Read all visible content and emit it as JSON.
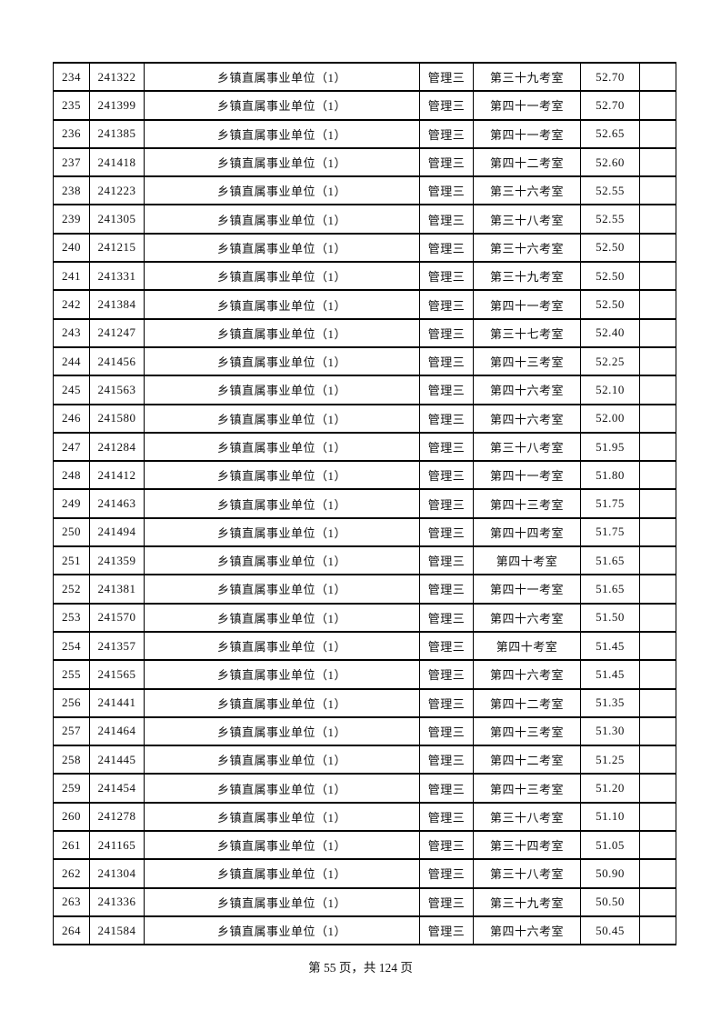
{
  "page": {
    "footer": "第 55 页，共 124 页"
  },
  "table": {
    "columns": [
      {
        "key": "no",
        "name": "rank-number"
      },
      {
        "key": "id",
        "name": "candidate-id"
      },
      {
        "key": "unit",
        "name": "position-unit"
      },
      {
        "key": "category",
        "name": "exam-category"
      },
      {
        "key": "room",
        "name": "exam-room"
      },
      {
        "key": "score",
        "name": "score"
      },
      {
        "key": "extra",
        "name": "remark"
      }
    ],
    "rows": [
      {
        "no": "234",
        "id": "241322",
        "unit": "乡镇直属事业单位（1）",
        "category": "管理三",
        "room": "第三十九考室",
        "score": "52.70",
        "extra": ""
      },
      {
        "no": "235",
        "id": "241399",
        "unit": "乡镇直属事业单位（1）",
        "category": "管理三",
        "room": "第四十一考室",
        "score": "52.70",
        "extra": ""
      },
      {
        "no": "236",
        "id": "241385",
        "unit": "乡镇直属事业单位（1）",
        "category": "管理三",
        "room": "第四十一考室",
        "score": "52.65",
        "extra": ""
      },
      {
        "no": "237",
        "id": "241418",
        "unit": "乡镇直属事业单位（1）",
        "category": "管理三",
        "room": "第四十二考室",
        "score": "52.60",
        "extra": ""
      },
      {
        "no": "238",
        "id": "241223",
        "unit": "乡镇直属事业单位（1）",
        "category": "管理三",
        "room": "第三十六考室",
        "score": "52.55",
        "extra": ""
      },
      {
        "no": "239",
        "id": "241305",
        "unit": "乡镇直属事业单位（1）",
        "category": "管理三",
        "room": "第三十八考室",
        "score": "52.55",
        "extra": ""
      },
      {
        "no": "240",
        "id": "241215",
        "unit": "乡镇直属事业单位（1）",
        "category": "管理三",
        "room": "第三十六考室",
        "score": "52.50",
        "extra": ""
      },
      {
        "no": "241",
        "id": "241331",
        "unit": "乡镇直属事业单位（1）",
        "category": "管理三",
        "room": "第三十九考室",
        "score": "52.50",
        "extra": ""
      },
      {
        "no": "242",
        "id": "241384",
        "unit": "乡镇直属事业单位（1）",
        "category": "管理三",
        "room": "第四十一考室",
        "score": "52.50",
        "extra": ""
      },
      {
        "no": "243",
        "id": "241247",
        "unit": "乡镇直属事业单位（1）",
        "category": "管理三",
        "room": "第三十七考室",
        "score": "52.40",
        "extra": ""
      },
      {
        "no": "244",
        "id": "241456",
        "unit": "乡镇直属事业单位（1）",
        "category": "管理三",
        "room": "第四十三考室",
        "score": "52.25",
        "extra": ""
      },
      {
        "no": "245",
        "id": "241563",
        "unit": "乡镇直属事业单位（1）",
        "category": "管理三",
        "room": "第四十六考室",
        "score": "52.10",
        "extra": ""
      },
      {
        "no": "246",
        "id": "241580",
        "unit": "乡镇直属事业单位（1）",
        "category": "管理三",
        "room": "第四十六考室",
        "score": "52.00",
        "extra": ""
      },
      {
        "no": "247",
        "id": "241284",
        "unit": "乡镇直属事业单位（1）",
        "category": "管理三",
        "room": "第三十八考室",
        "score": "51.95",
        "extra": ""
      },
      {
        "no": "248",
        "id": "241412",
        "unit": "乡镇直属事业单位（1）",
        "category": "管理三",
        "room": "第四十一考室",
        "score": "51.80",
        "extra": ""
      },
      {
        "no": "249",
        "id": "241463",
        "unit": "乡镇直属事业单位（1）",
        "category": "管理三",
        "room": "第四十三考室",
        "score": "51.75",
        "extra": ""
      },
      {
        "no": "250",
        "id": "241494",
        "unit": "乡镇直属事业单位（1）",
        "category": "管理三",
        "room": "第四十四考室",
        "score": "51.75",
        "extra": ""
      },
      {
        "no": "251",
        "id": "241359",
        "unit": "乡镇直属事业单位（1）",
        "category": "管理三",
        "room": "第四十考室",
        "score": "51.65",
        "extra": ""
      },
      {
        "no": "252",
        "id": "241381",
        "unit": "乡镇直属事业单位（1）",
        "category": "管理三",
        "room": "第四十一考室",
        "score": "51.65",
        "extra": ""
      },
      {
        "no": "253",
        "id": "241570",
        "unit": "乡镇直属事业单位（1）",
        "category": "管理三",
        "room": "第四十六考室",
        "score": "51.50",
        "extra": ""
      },
      {
        "no": "254",
        "id": "241357",
        "unit": "乡镇直属事业单位（1）",
        "category": "管理三",
        "room": "第四十考室",
        "score": "51.45",
        "extra": ""
      },
      {
        "no": "255",
        "id": "241565",
        "unit": "乡镇直属事业单位（1）",
        "category": "管理三",
        "room": "第四十六考室",
        "score": "51.45",
        "extra": ""
      },
      {
        "no": "256",
        "id": "241441",
        "unit": "乡镇直属事业单位（1）",
        "category": "管理三",
        "room": "第四十二考室",
        "score": "51.35",
        "extra": ""
      },
      {
        "no": "257",
        "id": "241464",
        "unit": "乡镇直属事业单位（1）",
        "category": "管理三",
        "room": "第四十三考室",
        "score": "51.30",
        "extra": ""
      },
      {
        "no": "258",
        "id": "241445",
        "unit": "乡镇直属事业单位（1）",
        "category": "管理三",
        "room": "第四十二考室",
        "score": "51.25",
        "extra": ""
      },
      {
        "no": "259",
        "id": "241454",
        "unit": "乡镇直属事业单位（1）",
        "category": "管理三",
        "room": "第四十三考室",
        "score": "51.20",
        "extra": ""
      },
      {
        "no": "260",
        "id": "241278",
        "unit": "乡镇直属事业单位（1）",
        "category": "管理三",
        "room": "第三十八考室",
        "score": "51.10",
        "extra": ""
      },
      {
        "no": "261",
        "id": "241165",
        "unit": "乡镇直属事业单位（1）",
        "category": "管理三",
        "room": "第三十四考室",
        "score": "51.05",
        "extra": ""
      },
      {
        "no": "262",
        "id": "241304",
        "unit": "乡镇直属事业单位（1）",
        "category": "管理三",
        "room": "第三十八考室",
        "score": "50.90",
        "extra": ""
      },
      {
        "no": "263",
        "id": "241336",
        "unit": "乡镇直属事业单位（1）",
        "category": "管理三",
        "room": "第三十九考室",
        "score": "50.50",
        "extra": ""
      },
      {
        "no": "264",
        "id": "241584",
        "unit": "乡镇直属事业单位（1）",
        "category": "管理三",
        "room": "第四十六考室",
        "score": "50.45",
        "extra": ""
      }
    ]
  }
}
